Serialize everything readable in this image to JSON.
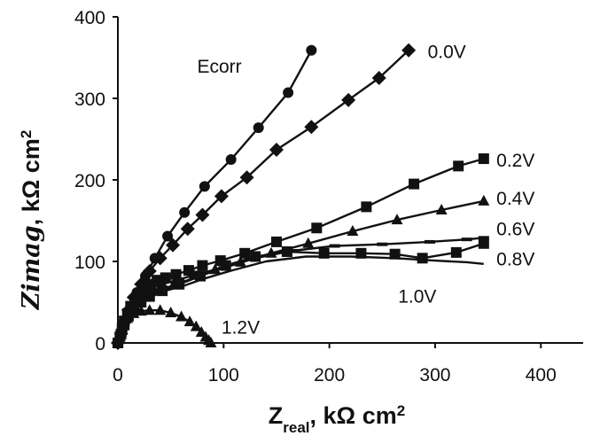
{
  "chart_data": {
    "type": "scatter",
    "xlabel": {
      "main": "Z",
      "sub": "real",
      "tail": ", kΩ cm",
      "sup": "2"
    },
    "ylabel": {
      "main": "Zimag",
      "tail": ", kΩ cm",
      "sup": "2"
    },
    "xlim": [
      0,
      440
    ],
    "ylim": [
      0,
      400
    ],
    "xticks": [
      0,
      100,
      200,
      300,
      400
    ],
    "yticks": [
      0,
      100,
      200,
      300,
      400
    ],
    "grid": false,
    "series": [
      {
        "name": "Ecorr",
        "marker": "circle",
        "label_at": [
          75,
          340
        ],
        "x": [
          0,
          3,
          7,
          12,
          18,
          26,
          35,
          47,
          63,
          82,
          107,
          133,
          161,
          183
        ],
        "y": [
          0,
          10,
          27,
          45,
          62,
          82,
          104,
          131,
          160,
          192,
          225,
          264,
          307,
          359
        ]
      },
      {
        "name": "0.0V",
        "marker": "diamond",
        "label_at": [
          293,
          358
        ],
        "x": [
          0,
          3,
          6,
          10,
          15,
          22,
          30,
          40,
          52,
          66,
          80,
          98,
          122,
          150,
          183,
          218,
          247,
          275
        ],
        "y": [
          0,
          11,
          25,
          40,
          56,
          72,
          88,
          104,
          120,
          140,
          157,
          180,
          203,
          237,
          265,
          298,
          325,
          359
        ]
      },
      {
        "name": "0.2V",
        "marker": "square",
        "label_at": [
          358,
          225
        ],
        "x": [
          0,
          2,
          4,
          6,
          9,
          12,
          16,
          20,
          25,
          31,
          37,
          45,
          55,
          67,
          80,
          97,
          120,
          150,
          188,
          235,
          280,
          322,
          346
        ],
        "y": [
          0,
          8,
          18,
          27,
          36,
          45,
          53,
          60,
          66,
          72,
          77,
          80,
          84,
          89,
          95,
          101,
          110,
          124,
          141,
          167,
          195,
          217,
          226
        ]
      },
      {
        "name": "0.4V",
        "marker": "triangle",
        "label_at": [
          358,
          178
        ],
        "x": [
          0,
          3,
          6,
          9,
          13,
          18,
          24,
          32,
          42,
          55,
          72,
          92,
          116,
          145,
          180,
          222,
          264,
          306,
          346
        ],
        "y": [
          0,
          13,
          26,
          36,
          46,
          54,
          61,
          67,
          72,
          77,
          83,
          90,
          99,
          110,
          122,
          137,
          151,
          163,
          174
        ]
      },
      {
        "name": "0.6V",
        "marker": "dash",
        "label_at": [
          358,
          141
        ],
        "x": [
          0,
          3,
          6,
          10,
          15,
          21,
          29,
          40,
          55,
          75,
          100,
          130,
          165,
          205,
          250,
          295,
          330,
          346
        ],
        "y": [
          0,
          12,
          24,
          34,
          43,
          51,
          58,
          65,
          72,
          81,
          92,
          104,
          113,
          119,
          121,
          124,
          127,
          129
        ]
      },
      {
        "name": "0.8V",
        "marker": "square",
        "label_at": [
          358,
          104
        ],
        "x": [
          0,
          3,
          6,
          10,
          15,
          22,
          30,
          42,
          58,
          78,
          102,
          130,
          160,
          195,
          230,
          262,
          288,
          320,
          346
        ],
        "y": [
          0,
          11,
          22,
          33,
          42,
          50,
          57,
          64,
          72,
          82,
          95,
          106,
          112,
          110,
          110,
          109,
          104,
          111,
          122
        ]
      },
      {
        "name": "1.0V",
        "marker": "none",
        "label_at": [
          265,
          58
        ],
        "x": [
          0,
          4,
          8,
          14,
          22,
          32,
          45,
          62,
          82,
          108,
          140,
          178,
          220,
          262,
          300,
          330,
          346
        ],
        "y": [
          0,
          14,
          27,
          39,
          49,
          57,
          64,
          70,
          79,
          89,
          100,
          106,
          106,
          104,
          101,
          99,
          97
        ]
      },
      {
        "name": "1.2V",
        "marker": "triangle",
        "label_at": [
          98,
          20
        ],
        "x": [
          0,
          2,
          5,
          9,
          15,
          22,
          30,
          40,
          50,
          60,
          68,
          74,
          79,
          83,
          86,
          88
        ],
        "y": [
          0,
          12,
          22,
          30,
          36,
          39,
          40,
          40,
          37,
          32,
          26,
          20,
          13,
          7,
          3,
          0
        ]
      }
    ]
  }
}
